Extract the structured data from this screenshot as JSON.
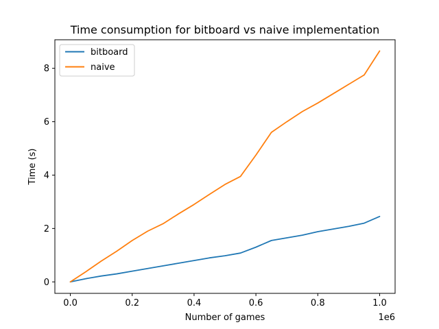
{
  "chart_data": {
    "type": "line",
    "title": "Time consumption for bitboard vs naive implementation",
    "xlabel": "Number of games",
    "ylabel": "Time (s)",
    "x_offset_label": "1e6",
    "xlim": [
      -0.05,
      1.05
    ],
    "ylim": [
      -0.43,
      9.07
    ],
    "xticks": [
      0.0,
      0.2,
      0.4,
      0.6,
      0.8,
      1.0
    ],
    "xtick_labels": [
      "0.0",
      "0.2",
      "0.4",
      "0.6",
      "0.8",
      "1.0"
    ],
    "yticks": [
      0,
      2,
      4,
      6,
      8
    ],
    "ytick_labels": [
      "0",
      "2",
      "4",
      "6",
      "8"
    ],
    "grid": false,
    "legend_position": "top-left",
    "series": [
      {
        "name": "bitboard",
        "color": "#1f77b4",
        "x": [
          0.0,
          0.05,
          0.1,
          0.15,
          0.2,
          0.25,
          0.3,
          0.35,
          0.4,
          0.45,
          0.5,
          0.55,
          0.6,
          0.65,
          0.7,
          0.75,
          0.8,
          0.85,
          0.9,
          0.95,
          1.0
        ],
        "y": [
          0.0,
          0.12,
          0.22,
          0.3,
          0.4,
          0.5,
          0.6,
          0.7,
          0.8,
          0.9,
          0.98,
          1.08,
          1.3,
          1.55,
          1.65,
          1.75,
          1.88,
          1.98,
          2.08,
          2.2,
          2.45
        ]
      },
      {
        "name": "naive",
        "color": "#ff7f0e",
        "x": [
          0.0,
          0.05,
          0.1,
          0.15,
          0.2,
          0.25,
          0.3,
          0.35,
          0.4,
          0.45,
          0.5,
          0.55,
          0.6,
          0.65,
          0.7,
          0.75,
          0.8,
          0.85,
          0.9,
          0.95,
          1.0
        ],
        "y": [
          0.0,
          0.38,
          0.78,
          1.15,
          1.55,
          1.9,
          2.18,
          2.55,
          2.9,
          3.28,
          3.65,
          3.95,
          4.75,
          5.6,
          6.0,
          6.38,
          6.7,
          7.05,
          7.4,
          7.75,
          8.65
        ]
      }
    ]
  }
}
